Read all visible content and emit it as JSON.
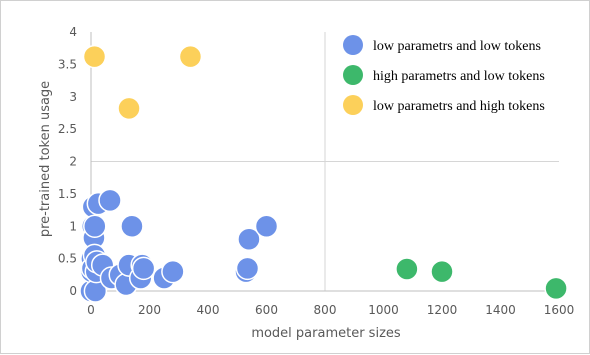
{
  "chart_data": {
    "type": "scatter",
    "title": "",
    "xlabel": "model parameter sizes",
    "ylabel": "pre-trained token usage",
    "xlim": [
      0,
      1600
    ],
    "ylim": [
      0,
      4
    ],
    "x_ticks": [
      "0",
      "200",
      "400",
      "600",
      "800",
      "1000",
      "1200",
      "1400",
      "1600"
    ],
    "y_ticks": [
      "0",
      "0.5",
      "1",
      "1.5",
      "2",
      "2.5",
      "3",
      "3.5",
      "4"
    ],
    "grid": "reference lines at x=800 and y=2",
    "legend_position": "top-right",
    "series": [
      {
        "name": "low parametrs and low tokens",
        "color": "#6d92e8",
        "points": [
          [
            0,
            0
          ],
          [
            2,
            0.3
          ],
          [
            3,
            0.5
          ],
          [
            5,
            0.35
          ],
          [
            6,
            1.0
          ],
          [
            8,
            1.3
          ],
          [
            10,
            0.82
          ],
          [
            12,
            0.55
          ],
          [
            13,
            1.0
          ],
          [
            15,
            0
          ],
          [
            18,
            0.3
          ],
          [
            20,
            0.45
          ],
          [
            25,
            1.35
          ],
          [
            40,
            0.4
          ],
          [
            65,
            1.4
          ],
          [
            70,
            0.2
          ],
          [
            100,
            0.25
          ],
          [
            120,
            0.1
          ],
          [
            130,
            0.4
          ],
          [
            140,
            1.0
          ],
          [
            170,
            0.2
          ],
          [
            175,
            0.4
          ],
          [
            180,
            0.35
          ],
          [
            250,
            0.2
          ],
          [
            280,
            0.3
          ],
          [
            530,
            0.3
          ],
          [
            535,
            0.35
          ],
          [
            540,
            0.8
          ],
          [
            600,
            1.0
          ]
        ]
      },
      {
        "name": "high parametrs and low tokens",
        "color": "#3db86b",
        "points": [
          [
            1080,
            0.34
          ],
          [
            1200,
            0.3
          ],
          [
            1590,
            0.04
          ]
        ]
      },
      {
        "name": "low parametrs and high tokens",
        "color": "#fcd05a",
        "points": [
          [
            12,
            3.62
          ],
          [
            130,
            2.82
          ],
          [
            340,
            3.62
          ]
        ]
      }
    ]
  }
}
